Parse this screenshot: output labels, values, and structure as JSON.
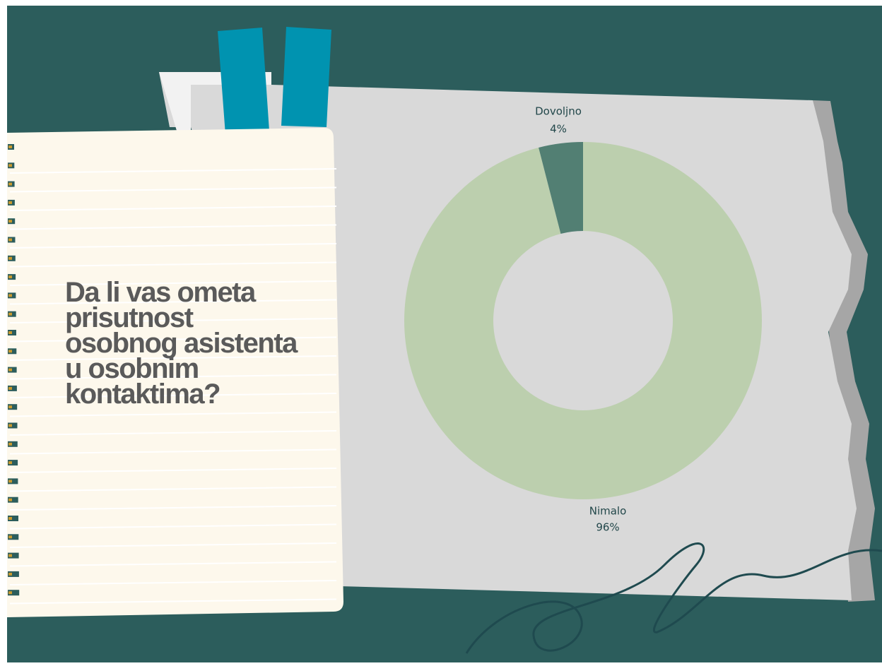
{
  "chart_data": {
    "type": "pie",
    "title": "Da li vas ometa prisutnost osobnog asistenta u osobnim kontaktima?",
    "categories": [
      "Nimalo",
      "Dovoljno"
    ],
    "values": [
      96,
      4
    ],
    "value_labels": [
      "96%",
      "4%"
    ],
    "colors": [
      "#bccfae",
      "#527f73"
    ],
    "donut": true
  }
}
